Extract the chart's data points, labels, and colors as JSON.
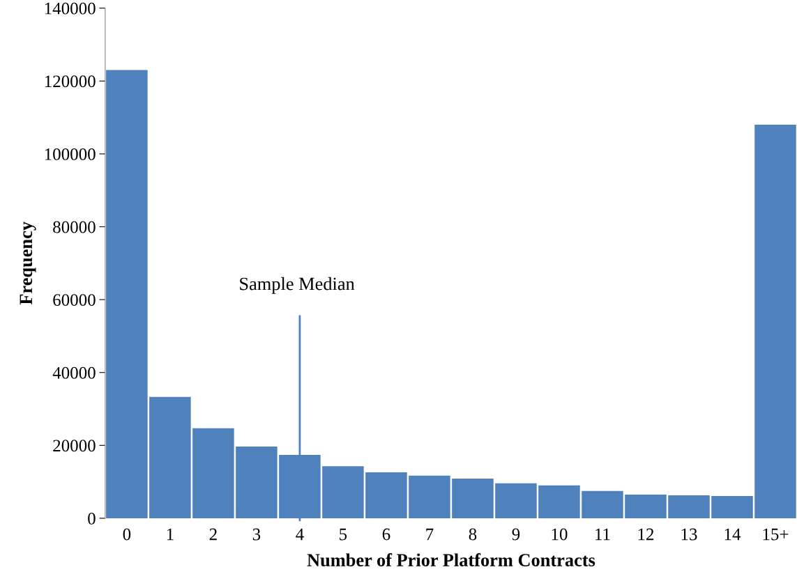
{
  "chart_data": {
    "type": "bar",
    "xlabel": "Number of Prior Platform Contracts",
    "ylabel": "Frequency",
    "categories": [
      "0",
      "1",
      "2",
      "3",
      "4",
      "5",
      "6",
      "7",
      "8",
      "9",
      "10",
      "11",
      "12",
      "13",
      "14",
      "15+"
    ],
    "values": [
      123000,
      33300,
      24700,
      19700,
      17400,
      14300,
      12600,
      11700,
      10900,
      9600,
      9000,
      7500,
      6500,
      6300,
      6100,
      108000
    ],
    "color": "#4f81bd",
    "ylim": [
      0,
      140000
    ],
    "yticks": [
      0,
      20000,
      40000,
      60000,
      80000,
      100000,
      120000,
      140000
    ],
    "ref_lines": [
      {
        "axis": "x",
        "value": "4",
        "label": "Sample Median",
        "color": "#4f81bd"
      }
    ],
    "grid": false
  }
}
